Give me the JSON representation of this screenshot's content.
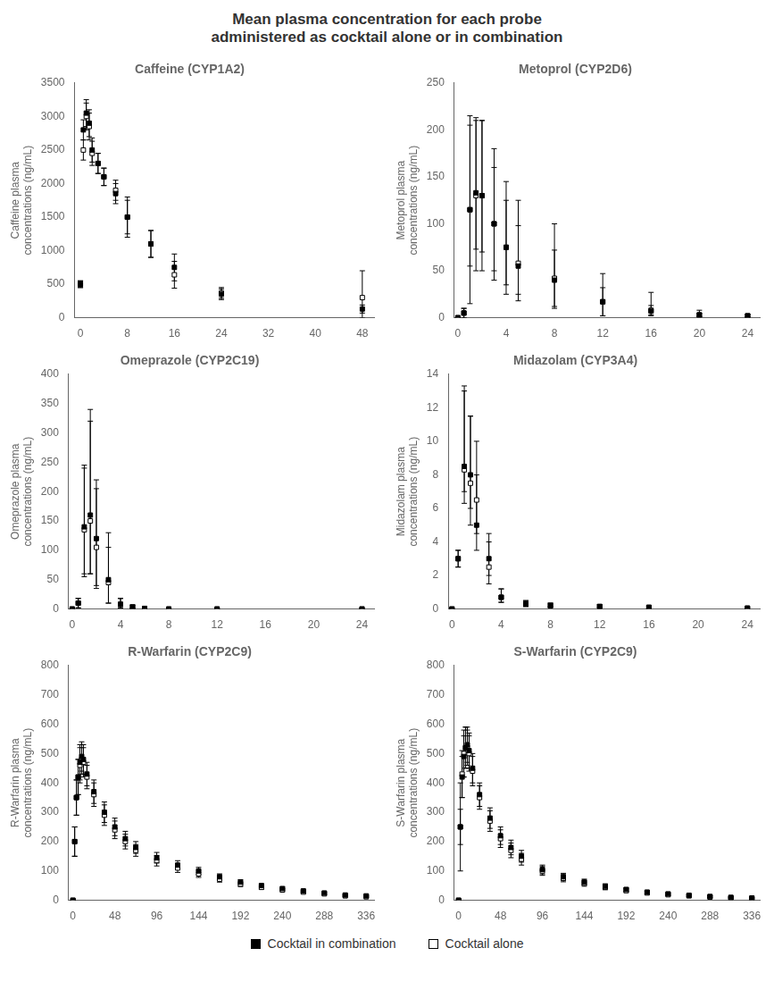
{
  "title": "Mean plasma concentration for each probe\nadministered as cocktail alone or in combination",
  "legend": "bottom",
  "chart_data": [
    {
      "type": "scatter",
      "title": "Caffeine (CYP1A2)",
      "ylabel": "Caffeine plasma\nconcentrations (ng/mL)",
      "grid": false,
      "xlim": [
        -1,
        50
      ],
      "xticks": [
        0,
        8,
        16,
        24,
        32,
        40,
        48
      ],
      "ylim": [
        0,
        3500
      ],
      "yticks": [
        0,
        500,
        1000,
        1500,
        2000,
        2500,
        3000,
        3500
      ],
      "x": [
        0,
        0.5,
        1,
        1.5,
        2,
        3,
        4,
        6,
        8,
        12,
        16,
        24,
        48
      ],
      "series": [
        {
          "name": "Cocktail in combination",
          "color": "#000000",
          "marker": "filled_square",
          "values": [
            500,
            2800,
            3050,
            2900,
            2500,
            2300,
            2100,
            1850,
            1500,
            1100,
            750,
            350,
            130
          ],
          "error_low": [
            50,
            150,
            200,
            200,
            180,
            150,
            130,
            150,
            250,
            200,
            200,
            80,
            60
          ],
          "error_high": [
            50,
            150,
            200,
            200,
            180,
            150,
            130,
            150,
            250,
            200,
            200,
            80,
            60
          ]
        },
        {
          "name": "Cocktail alone",
          "color": "#000000",
          "marker": "open_square",
          "values": [
            500,
            2500,
            3000,
            2850,
            2450,
            2300,
            2100,
            1900,
            1500,
            1100,
            640,
            370,
            300
          ],
          "error_low": [
            50,
            150,
            200,
            200,
            180,
            150,
            130,
            150,
            300,
            200,
            200,
            80,
            300
          ],
          "error_high": [
            50,
            150,
            200,
            200,
            180,
            150,
            130,
            150,
            300,
            200,
            200,
            80,
            400
          ]
        }
      ]
    },
    {
      "type": "scatter",
      "title": "Metoprol (CYP2D6)",
      "ylabel": "Metoprol plasma\nconcentrations (ng/mL)",
      "grid": false,
      "xlim": [
        -0.3,
        25
      ],
      "xticks": [
        0,
        4,
        8,
        12,
        16,
        20,
        24
      ],
      "ylim": [
        0,
        250
      ],
      "yticks": [
        0,
        50,
        100,
        150,
        200,
        250
      ],
      "x": [
        0,
        0.5,
        1,
        1.5,
        2,
        3,
        4,
        5,
        8,
        12,
        16,
        20,
        24
      ],
      "series": [
        {
          "name": "Cocktail in combination",
          "color": "#000000",
          "marker": "filled_square",
          "values": [
            0,
            5,
            115,
            133,
            130,
            100,
            75,
            55,
            40,
            17,
            7,
            3,
            2
          ],
          "error_low": [
            0,
            5,
            60,
            60,
            60,
            50,
            40,
            30,
            30,
            15,
            5,
            2,
            1
          ],
          "error_high": [
            0,
            5,
            90,
            80,
            80,
            80,
            70,
            70,
            60,
            30,
            20,
            5,
            2
          ]
        },
        {
          "name": "Cocktail alone",
          "color": "#000000",
          "marker": "open_square",
          "values": [
            0,
            5,
            115,
            130,
            130,
            100,
            75,
            58,
            42,
            17,
            8,
            3,
            2
          ],
          "error_low": [
            0,
            5,
            100,
            80,
            80,
            60,
            50,
            40,
            30,
            15,
            5,
            2,
            1
          ],
          "error_high": [
            0,
            5,
            100,
            80,
            80,
            60,
            50,
            40,
            30,
            15,
            5,
            2,
            1
          ]
        }
      ]
    },
    {
      "type": "scatter",
      "title": "Omeprazole (CYP2C19)",
      "ylabel": "Omeprazole plasma\nconcentrations (ng/mL)",
      "grid": false,
      "xlim": [
        -0.3,
        25
      ],
      "xticks": [
        0,
        4,
        8,
        12,
        16,
        20,
        24
      ],
      "ylim": [
        0,
        400
      ],
      "yticks": [
        0,
        50,
        100,
        150,
        200,
        250,
        300,
        350,
        400
      ],
      "x": [
        0,
        0.5,
        1,
        1.5,
        2,
        3,
        4,
        5,
        6,
        8,
        12,
        24
      ],
      "series": [
        {
          "name": "Cocktail in combination",
          "color": "#000000",
          "marker": "filled_square",
          "values": [
            0,
            10,
            140,
            160,
            120,
            50,
            8,
            3,
            1,
            0,
            0,
            0
          ],
          "error_low": [
            0,
            8,
            80,
            100,
            80,
            40,
            6,
            2,
            1,
            0,
            0,
            0
          ],
          "error_high": [
            0,
            8,
            100,
            180,
            100,
            80,
            10,
            4,
            1,
            0,
            0,
            0
          ]
        },
        {
          "name": "Cocktail alone",
          "color": "#000000",
          "marker": "open_square",
          "values": [
            0,
            10,
            135,
            150,
            105,
            45,
            8,
            3,
            1,
            0,
            0,
            0
          ],
          "error_low": [
            0,
            8,
            80,
            90,
            70,
            35,
            6,
            2,
            1,
            0,
            0,
            0
          ],
          "error_high": [
            0,
            8,
            110,
            170,
            100,
            60,
            10,
            4,
            1,
            0,
            0,
            0
          ]
        }
      ]
    },
    {
      "type": "scatter",
      "title": "Midazolam (CYP3A4)",
      "ylabel": "Midazolam plasma\nconcentrations (ng/mL)",
      "grid": false,
      "xlim": [
        -0.3,
        25
      ],
      "xticks": [
        0,
        4,
        8,
        12,
        16,
        20,
        24
      ],
      "ylim": [
        0,
        14
      ],
      "yticks": [
        0,
        2,
        4,
        6,
        8,
        10,
        12,
        14
      ],
      "x": [
        0,
        0.5,
        1,
        1.5,
        2,
        3,
        4,
        6,
        8,
        12,
        16,
        24
      ],
      "series": [
        {
          "name": "Cocktail in combination",
          "color": "#000000",
          "marker": "filled_square",
          "values": [
            0,
            3.0,
            8.5,
            8.0,
            5.0,
            3.0,
            0.7,
            0.3,
            0.2,
            0.15,
            0.1,
            0.05
          ],
          "error_low": [
            0,
            0.5,
            1.5,
            2.0,
            1.5,
            1.0,
            0.3,
            0.15,
            0.1,
            0.05,
            0.05,
            0.03
          ],
          "error_high": [
            0,
            0.5,
            4.5,
            3.5,
            3.0,
            1.5,
            0.5,
            0.2,
            0.15,
            0.1,
            0.08,
            0.05
          ]
        },
        {
          "name": "Cocktail alone",
          "color": "#000000",
          "marker": "open_square",
          "values": [
            0,
            3.0,
            8.3,
            7.5,
            6.5,
            2.5,
            0.7,
            0.3,
            0.2,
            0.15,
            0.1,
            0.05
          ],
          "error_low": [
            0,
            0.5,
            2.0,
            2.5,
            2.0,
            1.0,
            0.3,
            0.15,
            0.1,
            0.05,
            0.05,
            0.03
          ],
          "error_high": [
            0,
            0.5,
            5.0,
            4.0,
            3.5,
            1.5,
            0.5,
            0.2,
            0.15,
            0.1,
            0.08,
            0.05
          ]
        }
      ]
    },
    {
      "type": "scatter",
      "title": "R-Warfarin (CYP2C9)",
      "ylabel": "R-Warfarin plasma\nconcentrations (ng/mL)",
      "grid": false,
      "xlim": [
        -5,
        345
      ],
      "xticks": [
        0,
        48,
        96,
        144,
        192,
        240,
        288,
        336
      ],
      "ylim": [
        0,
        800
      ],
      "yticks": [
        0,
        100,
        200,
        300,
        400,
        500,
        600,
        700,
        800
      ],
      "x": [
        0,
        2,
        4,
        6,
        8,
        10,
        12,
        16,
        24,
        36,
        48,
        60,
        72,
        96,
        120,
        144,
        168,
        192,
        216,
        240,
        264,
        288,
        312,
        336
      ],
      "series": [
        {
          "name": "Cocktail in combination",
          "color": "#000000",
          "marker": "filled_square",
          "values": [
            0,
            200,
            350,
            420,
            470,
            490,
            480,
            430,
            370,
            300,
            250,
            210,
            180,
            145,
            120,
            100,
            80,
            62,
            50,
            40,
            32,
            25,
            18,
            15
          ],
          "error_low": [
            0,
            50,
            60,
            60,
            60,
            50,
            50,
            40,
            40,
            35,
            30,
            25,
            20,
            18,
            15,
            12,
            10,
            8,
            6,
            5,
            4,
            4,
            3,
            3
          ],
          "error_high": [
            0,
            50,
            60,
            60,
            60,
            50,
            50,
            40,
            40,
            35,
            30,
            25,
            20,
            18,
            15,
            12,
            10,
            8,
            6,
            5,
            4,
            4,
            3,
            3
          ]
        },
        {
          "name": "Cocktail alone",
          "color": "#000000",
          "marker": "open_square",
          "values": [
            0,
            200,
            350,
            420,
            460,
            480,
            470,
            420,
            360,
            290,
            240,
            200,
            170,
            135,
            110,
            90,
            72,
            55,
            44,
            35,
            28,
            22,
            15,
            12
          ],
          "error_low": [
            0,
            50,
            60,
            60,
            60,
            50,
            50,
            40,
            40,
            35,
            30,
            25,
            20,
            18,
            15,
            12,
            10,
            8,
            6,
            5,
            4,
            4,
            3,
            3
          ],
          "error_high": [
            0,
            50,
            60,
            60,
            60,
            50,
            50,
            40,
            40,
            35,
            30,
            25,
            20,
            18,
            15,
            12,
            10,
            8,
            6,
            5,
            4,
            4,
            3,
            3
          ]
        }
      ]
    },
    {
      "type": "scatter",
      "title": "S-Warfarin (CYP2C9)",
      "ylabel": "S-Warfarin plasma\nconcentrations (ng/mL)",
      "grid": false,
      "xlim": [
        -5,
        345
      ],
      "xticks": [
        0,
        48,
        96,
        144,
        192,
        240,
        288,
        336
      ],
      "ylim": [
        0,
        800
      ],
      "yticks": [
        0,
        100,
        200,
        300,
        400,
        500,
        600,
        700,
        800
      ],
      "x": [
        0,
        2,
        4,
        6,
        8,
        10,
        12,
        16,
        24,
        36,
        48,
        60,
        72,
        96,
        120,
        144,
        168,
        192,
        216,
        240,
        264,
        288,
        312,
        336
      ],
      "series": [
        {
          "name": "Cocktail in combination",
          "color": "#000000",
          "marker": "filled_square",
          "values": [
            0,
            250,
            420,
            490,
            520,
            530,
            510,
            450,
            360,
            280,
            220,
            180,
            150,
            105,
            80,
            62,
            48,
            37,
            28,
            22,
            17,
            13,
            10,
            8
          ],
          "error_low": [
            0,
            60,
            70,
            70,
            70,
            60,
            60,
            50,
            40,
            35,
            30,
            25,
            20,
            15,
            12,
            10,
            8,
            6,
            5,
            4,
            3,
            3,
            2,
            2
          ],
          "error_high": [
            0,
            60,
            70,
            70,
            70,
            60,
            60,
            50,
            40,
            35,
            30,
            25,
            20,
            15,
            12,
            10,
            8,
            6,
            5,
            4,
            3,
            3,
            2,
            2
          ]
        },
        {
          "name": "Cocktail alone",
          "color": "#000000",
          "marker": "open_square",
          "values": [
            0,
            250,
            430,
            500,
            520,
            520,
            500,
            440,
            350,
            270,
            210,
            170,
            140,
            100,
            75,
            58,
            44,
            33,
            25,
            19,
            15,
            11,
            8,
            6
          ],
          "error_low": [
            0,
            150,
            80,
            80,
            70,
            60,
            60,
            50,
            40,
            35,
            30,
            25,
            20,
            15,
            12,
            10,
            8,
            6,
            5,
            4,
            3,
            3,
            2,
            2
          ],
          "error_high": [
            0,
            150,
            80,
            80,
            70,
            60,
            60,
            50,
            40,
            35,
            30,
            25,
            20,
            15,
            12,
            10,
            8,
            6,
            5,
            4,
            3,
            3,
            2,
            2
          ]
        }
      ]
    }
  ]
}
